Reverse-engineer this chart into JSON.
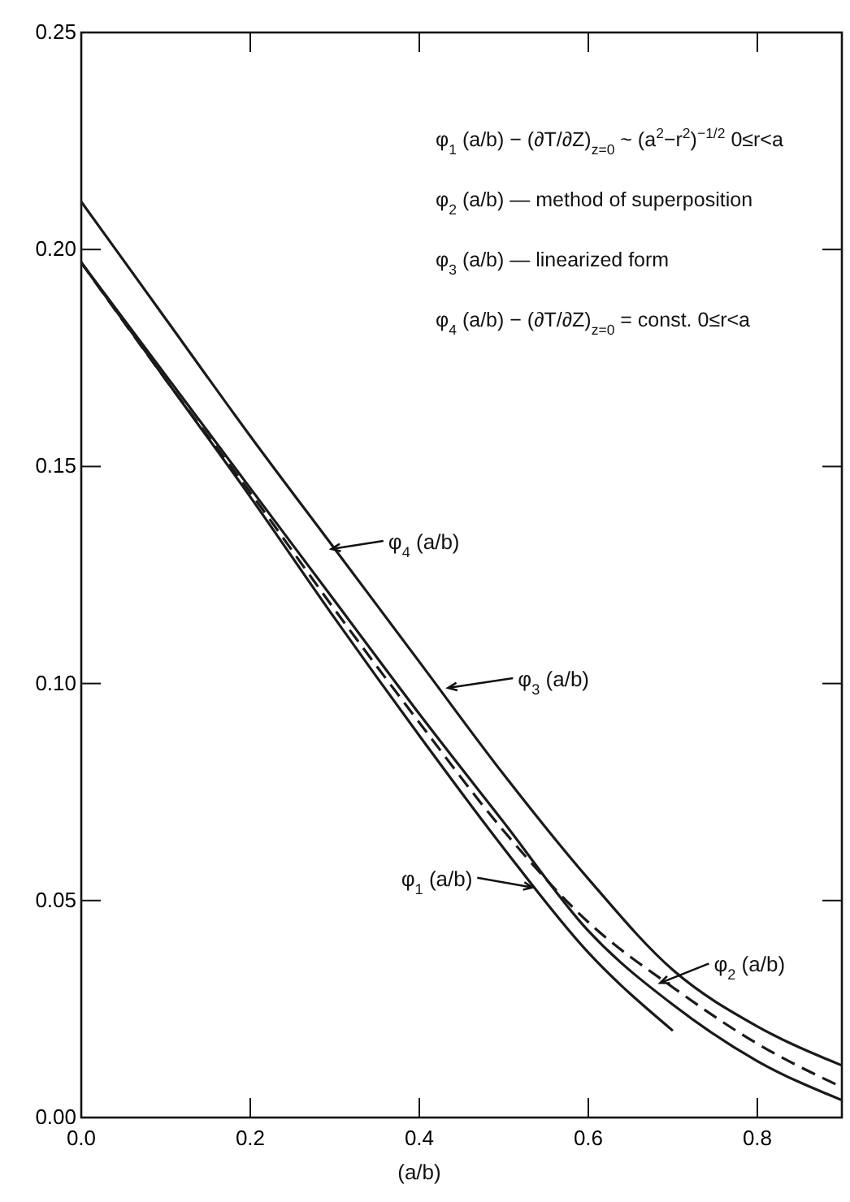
{
  "chart_data": {
    "type": "line",
    "xlabel": "(a/b)",
    "xlim": [
      0,
      0.9
    ],
    "ylim": [
      0,
      0.25
    ],
    "xticks": [
      {
        "value": 0,
        "label": "0.0"
      },
      0.2,
      0.4,
      0.6,
      0.8
    ],
    "yticks": [
      {
        "value": 0,
        "label": "0.00"
      },
      0.05,
      {
        "value": 0.1,
        "label": "0.10"
      },
      0.15,
      {
        "value": 0.2,
        "label": "0.20"
      },
      0.25
    ],
    "grid": false,
    "marker": "none",
    "series": [
      {
        "color": "#1a1a1a",
        "line_style": "solid",
        "x": [
          0,
          0.1,
          0.2,
          0.3,
          0.4,
          0.5,
          0.6,
          0.7,
          0.8,
          0.9
        ],
        "values": [
          0.211,
          0.184,
          0.157,
          0.131,
          0.105,
          0.079,
          0.055,
          0.034,
          0.021,
          0.012
        ]
      },
      {
        "color": "#1a1a1a",
        "line_style": "solid",
        "x": [
          0,
          0.1,
          0.2,
          0.3,
          0.4,
          0.5,
          0.6,
          0.7,
          0.8,
          0.9
        ],
        "values": [
          0.197,
          0.171,
          0.145,
          0.119,
          0.093,
          0.068,
          0.043,
          0.026,
          0.013,
          0.004
        ]
      },
      {
        "color": "#1a1a1a",
        "line_style": "dashed",
        "x": [
          0,
          0.1,
          0.2,
          0.3,
          0.4,
          0.5,
          0.6,
          0.7,
          0.8,
          0.9
        ],
        "values": [
          0.197,
          0.17,
          0.144,
          0.117,
          0.091,
          0.066,
          0.045,
          0.03,
          0.017,
          0.007
        ]
      },
      {
        "color": "#1a1a1a",
        "line_style": "solid",
        "x": [
          0,
          0.1,
          0.2,
          0.3,
          0.4,
          0.5,
          0.6,
          0.7
        ],
        "values": [
          0.197,
          0.17,
          0.143,
          0.115,
          0.088,
          0.062,
          0.038,
          0.02
        ]
      }
    ],
    "annotations": [
      "φ$_{1}$ (a/b) − (∂T/∂Z)$_{z=0}$ ~ (a$^{2}$−r$^{2}$)$^{−1/2}$  0≤r<a",
      "φ$_{2}$ (a/b) — method of superposition",
      "φ$_{3}$ (a/b) — linearized form",
      "φ$_{4}$ (a/b) − (∂T/∂Z)$_{z=0}$ = const.  0≤r<a",
      {
        "text": "φ$_{4}$ (a/b)",
        "x": 0.296,
        "y": 0.131
      },
      {
        "text": "φ$_{3}$ (a/b)",
        "x": 0.434,
        "y": 0.099
      },
      {
        "text": "φ$_{1}$ (a/b)",
        "x": 0.534,
        "y": 0.053
      },
      {
        "text": "φ$_{2}$ (a/b)",
        "x": 0.685,
        "y": 0.031
      }
    ]
  }
}
